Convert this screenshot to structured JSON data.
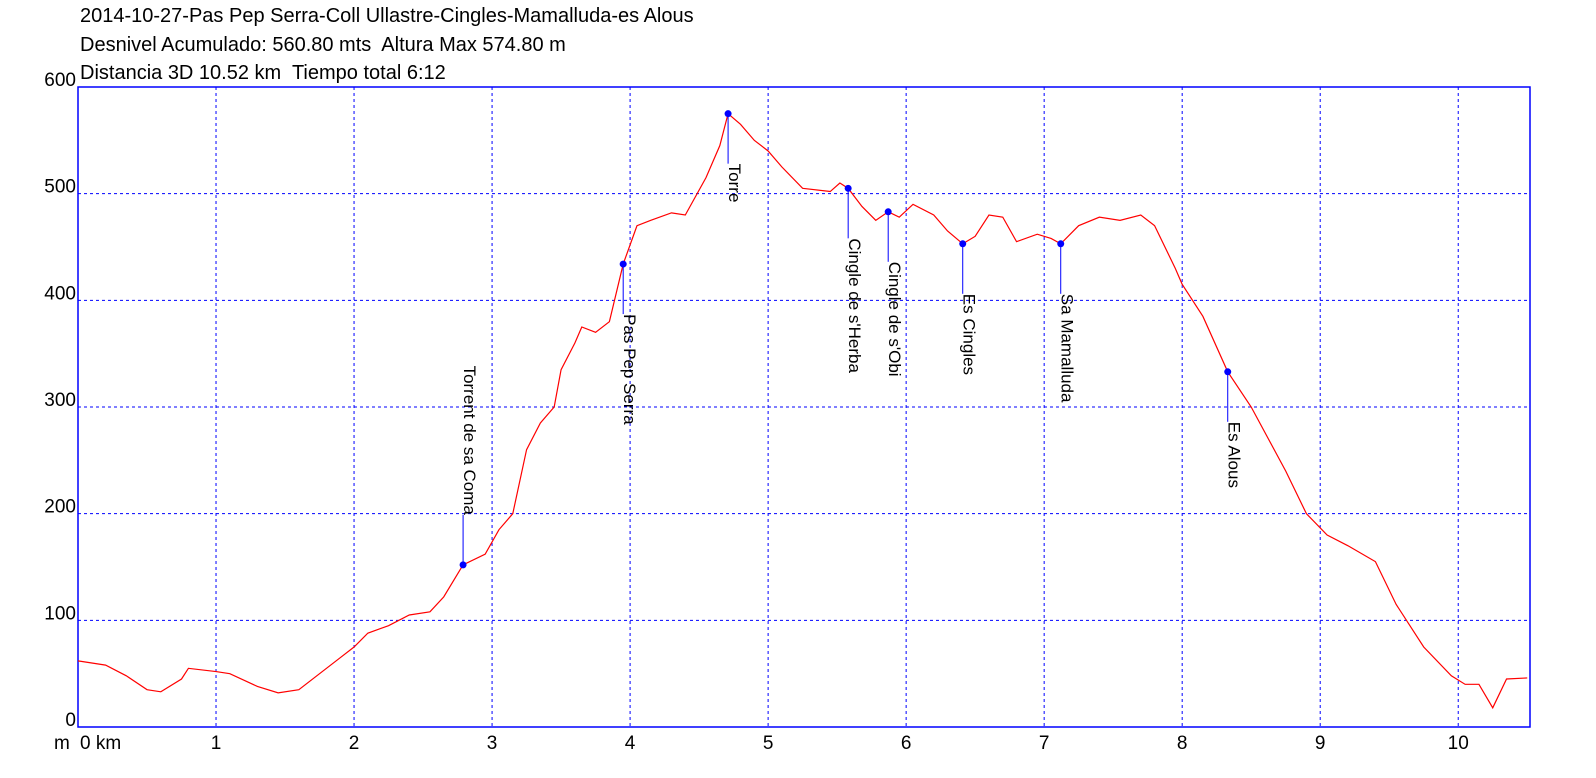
{
  "chart_data": {
    "type": "line",
    "title": "2014-10-27-Pas Pep Serra-Coll Ullastre-Cingles-Mamalluda-es Alous",
    "subtitles": [
      "Desnivel Acumulado: 560.80 mts  Altura Max 574.80 m",
      "Distancia 3D 10.52 km  Tiempo total 6:12"
    ],
    "y_unit": "m",
    "color": "#ff0000",
    "frame_color": "#0000ff",
    "grid": true,
    "grid_color": "#0000ff",
    "xlim": [
      0,
      10.52
    ],
    "ylim": [
      0,
      600
    ],
    "xticks": [
      {
        "value": 0,
        "label": "0 km"
      },
      1,
      2,
      3,
      4,
      5,
      6,
      7,
      8,
      9,
      10
    ],
    "yticks": [
      0,
      100,
      200,
      300,
      400,
      500,
      600
    ],
    "x": [
      0,
      0.2,
      0.35,
      0.5,
      0.6,
      0.75,
      0.8,
      1.0,
      1.1,
      1.3,
      1.45,
      1.6,
      1.75,
      1.9,
      2.0,
      2.1,
      2.25,
      2.4,
      2.55,
      2.65,
      2.79,
      2.95,
      3.05,
      3.15,
      3.25,
      3.35,
      3.45,
      3.5,
      3.6,
      3.65,
      3.75,
      3.85,
      3.95,
      4.05,
      4.15,
      4.3,
      4.4,
      4.55,
      4.65,
      4.71,
      4.8,
      4.9,
      5.0,
      5.1,
      5.25,
      5.45,
      5.52,
      5.58,
      5.68,
      5.78,
      5.87,
      5.95,
      6.05,
      6.2,
      6.3,
      6.41,
      6.5,
      6.6,
      6.7,
      6.8,
      6.95,
      7.05,
      7.12,
      7.25,
      7.4,
      7.55,
      7.7,
      7.8,
      7.95,
      8.0,
      8.15,
      8.33,
      8.5,
      8.75,
      8.9,
      9.05,
      9.2,
      9.4,
      9.55,
      9.75,
      9.95,
      10.05,
      10.15,
      10.25,
      10.35,
      10.5
    ],
    "values": [
      62,
      58,
      48,
      35,
      33,
      45,
      55,
      52,
      50,
      38,
      32,
      35,
      50,
      65,
      75,
      88,
      95,
      105,
      108,
      122,
      152,
      162,
      185,
      200,
      260,
      285,
      300,
      335,
      360,
      375,
      370,
      380,
      434,
      470,
      475,
      482,
      480,
      515,
      545,
      575,
      565,
      550,
      540,
      525,
      505,
      502,
      510,
      505,
      488,
      475,
      483,
      478,
      490,
      480,
      465,
      453,
      460,
      480,
      478,
      455,
      462,
      458,
      453,
      470,
      478,
      475,
      480,
      470,
      430,
      415,
      385,
      333,
      300,
      240,
      200,
      180,
      170,
      155,
      115,
      75,
      48,
      40,
      40,
      18,
      45,
      46
    ],
    "waypoint_color": "#0000ff",
    "waypoints": [
      {
        "label": "Torrent de sa Coma",
        "x": 2.79,
        "y": 152,
        "side": "above"
      },
      {
        "label": "Pas Pep Serra",
        "x": 3.95,
        "y": 434,
        "side": "below"
      },
      {
        "label": "Torre",
        "x": 4.71,
        "y": 575,
        "side": "below"
      },
      {
        "label": "Cingle de s'Herba",
        "x": 5.58,
        "y": 505,
        "side": "below"
      },
      {
        "label": "Cingle de s'Obi",
        "x": 5.87,
        "y": 483,
        "side": "below"
      },
      {
        "label": "Es Cingles",
        "x": 6.41,
        "y": 453,
        "side": "below"
      },
      {
        "label": "Sa Mamalluda",
        "x": 7.12,
        "y": 453,
        "side": "below"
      },
      {
        "label": "Es Alous",
        "x": 8.33,
        "y": 333,
        "side": "below"
      }
    ]
  }
}
